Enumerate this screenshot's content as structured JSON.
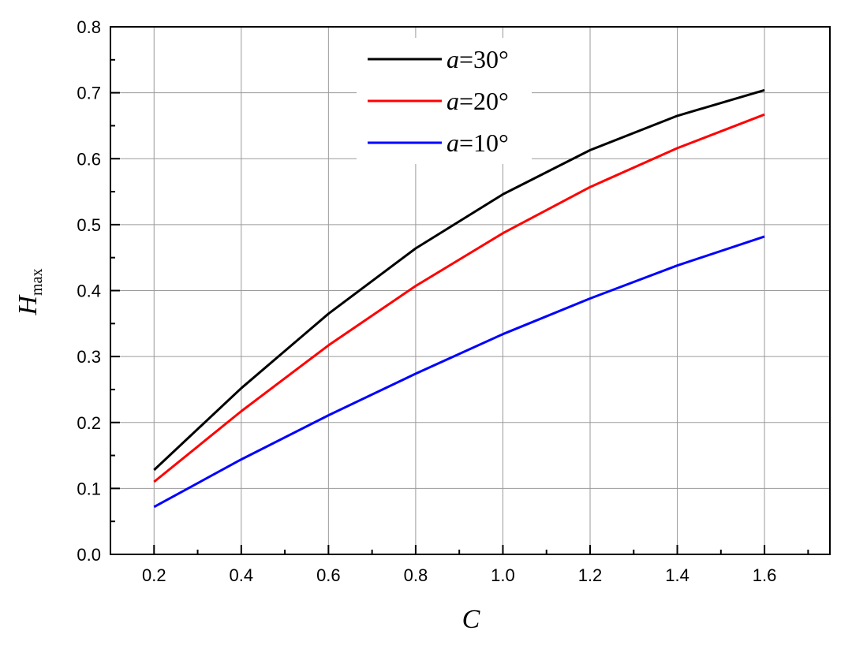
{
  "chart_data": {
    "type": "line",
    "title": "",
    "xlabel": "C",
    "ylabel": {
      "main": "H",
      "sub": "max"
    },
    "xlim": [
      0.1,
      1.75
    ],
    "ylim": [
      0.0,
      0.8
    ],
    "xticks": [
      "0.2",
      "0.4",
      "0.6",
      "0.8",
      "1.0",
      "1.2",
      "1.4",
      "1.6"
    ],
    "yticks": [
      "0.0",
      "0.1",
      "0.2",
      "0.3",
      "0.4",
      "0.5",
      "0.6",
      "0.7",
      "0.8"
    ],
    "grid": true,
    "legend_position": "top-center",
    "x": [
      0.2,
      0.4,
      0.6,
      0.8,
      1.0,
      1.2,
      1.4,
      1.6
    ],
    "series": [
      {
        "name": {
          "var": "a",
          "rest": "=30°"
        },
        "color": "#000000",
        "values": [
          0.128,
          0.252,
          0.365,
          0.464,
          0.546,
          0.613,
          0.665,
          0.704
        ]
      },
      {
        "name": {
          "var": "a",
          "rest": "=20°"
        },
        "color": "#ff0000",
        "values": [
          0.11,
          0.217,
          0.317,
          0.407,
          0.487,
          0.557,
          0.616,
          0.667
        ]
      },
      {
        "name": {
          "var": "a",
          "rest": "=10°"
        },
        "color": "#0000ff",
        "values": [
          0.072,
          0.144,
          0.211,
          0.274,
          0.334,
          0.388,
          0.438,
          0.482
        ]
      }
    ]
  }
}
